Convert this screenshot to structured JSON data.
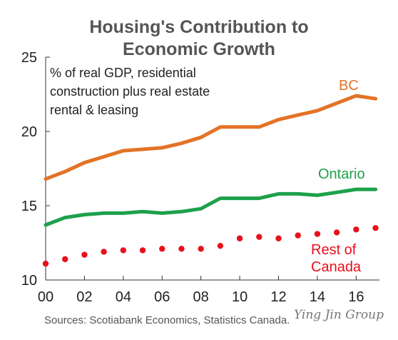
{
  "chart_data": {
    "type": "line",
    "title_lines": [
      "Housing's Contribution to",
      "Economic Growth"
    ],
    "subtitle_lines": [
      "% of real GDP, residential",
      "construction plus real estate",
      "rental & leasing"
    ],
    "x": [
      2000,
      2001,
      2002,
      2003,
      2004,
      2005,
      2006,
      2007,
      2008,
      2009,
      2010,
      2011,
      2012,
      2013,
      2014,
      2015,
      2016,
      2017
    ],
    "x_tick_values": [
      2000,
      2002,
      2004,
      2006,
      2008,
      2010,
      2012,
      2014,
      2016
    ],
    "x_tick_labels": [
      "00",
      "02",
      "04",
      "06",
      "08",
      "10",
      "12",
      "14",
      "16"
    ],
    "xlim": [
      2000,
      2017.2
    ],
    "y_tick_values": [
      10,
      15,
      20,
      25
    ],
    "y_tick_labels": [
      "10",
      "15",
      "20",
      "25"
    ],
    "ylim": [
      10,
      25
    ],
    "series": [
      {
        "name": "BC",
        "label_lines": [
          "BC"
        ],
        "color": "#E37326",
        "style": "solid",
        "values": [
          16.8,
          17.3,
          17.9,
          18.3,
          18.7,
          18.8,
          18.9,
          19.2,
          19.6,
          20.3,
          20.3,
          20.3,
          20.8,
          21.1,
          21.4,
          21.9,
          22.4,
          22.2
        ]
      },
      {
        "name": "Ontario",
        "label_lines": [
          "Ontario"
        ],
        "color": "#1DA14A",
        "style": "solid",
        "values": [
          13.7,
          14.2,
          14.4,
          14.5,
          14.5,
          14.6,
          14.5,
          14.6,
          14.8,
          15.5,
          15.5,
          15.5,
          15.8,
          15.8,
          15.7,
          15.9,
          16.1,
          16.1
        ]
      },
      {
        "name": "Rest of Canada",
        "label_lines": [
          "Rest of",
          "Canada"
        ],
        "color": "#E8101C",
        "style": "dotted",
        "values": [
          11.1,
          11.4,
          11.7,
          11.9,
          12.0,
          12.0,
          12.1,
          12.1,
          12.1,
          12.3,
          12.8,
          12.9,
          12.8,
          13.0,
          13.1,
          13.2,
          13.4,
          13.5
        ]
      }
    ],
    "grid": false,
    "source": "Sources: Scotiabank Economics, Statistics Canada.",
    "watermark": "Ying Jin Group",
    "text_color": "#555555"
  }
}
